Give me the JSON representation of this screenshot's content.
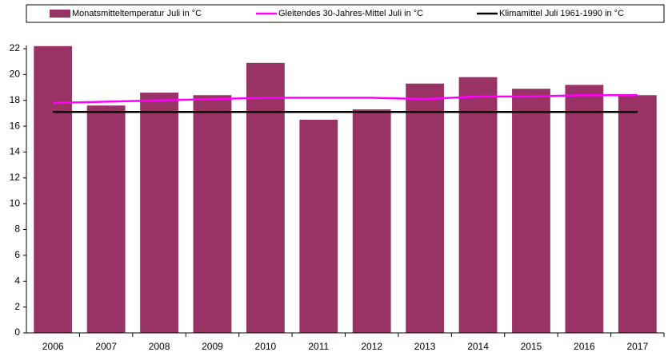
{
  "chart_data": {
    "type": "bar",
    "categories": [
      "2006",
      "2007",
      "2008",
      "2009",
      "2010",
      "2011",
      "2012",
      "2013",
      "2014",
      "2015",
      "2016",
      "2017"
    ],
    "series": [
      {
        "name": "Monatsmitteltemperatur Juli in °C",
        "type": "bar",
        "color": "#993366",
        "values": [
          22.2,
          17.6,
          18.6,
          18.4,
          20.9,
          16.5,
          17.3,
          19.3,
          19.8,
          18.9,
          19.2,
          18.4
        ]
      },
      {
        "name": "Gleitendes 30-Jahres-Mittel Juli in °C",
        "type": "line",
        "color": "#ff00ff",
        "values": [
          17.8,
          17.9,
          18.0,
          18.1,
          18.2,
          18.2,
          18.2,
          18.1,
          18.3,
          18.3,
          18.4,
          18.4
        ]
      },
      {
        "name": "Klimamittel Juli 1961-1990 in °C",
        "type": "line",
        "color": "#000000",
        "values": [
          17.1,
          17.1,
          17.1,
          17.1,
          17.1,
          17.1,
          17.1,
          17.1,
          17.1,
          17.1,
          17.1,
          17.1
        ]
      }
    ],
    "ylim": [
      0,
      22
    ],
    "yticks": [
      0,
      2,
      4,
      6,
      8,
      10,
      12,
      14,
      16,
      18,
      20,
      22
    ],
    "grid": false
  }
}
